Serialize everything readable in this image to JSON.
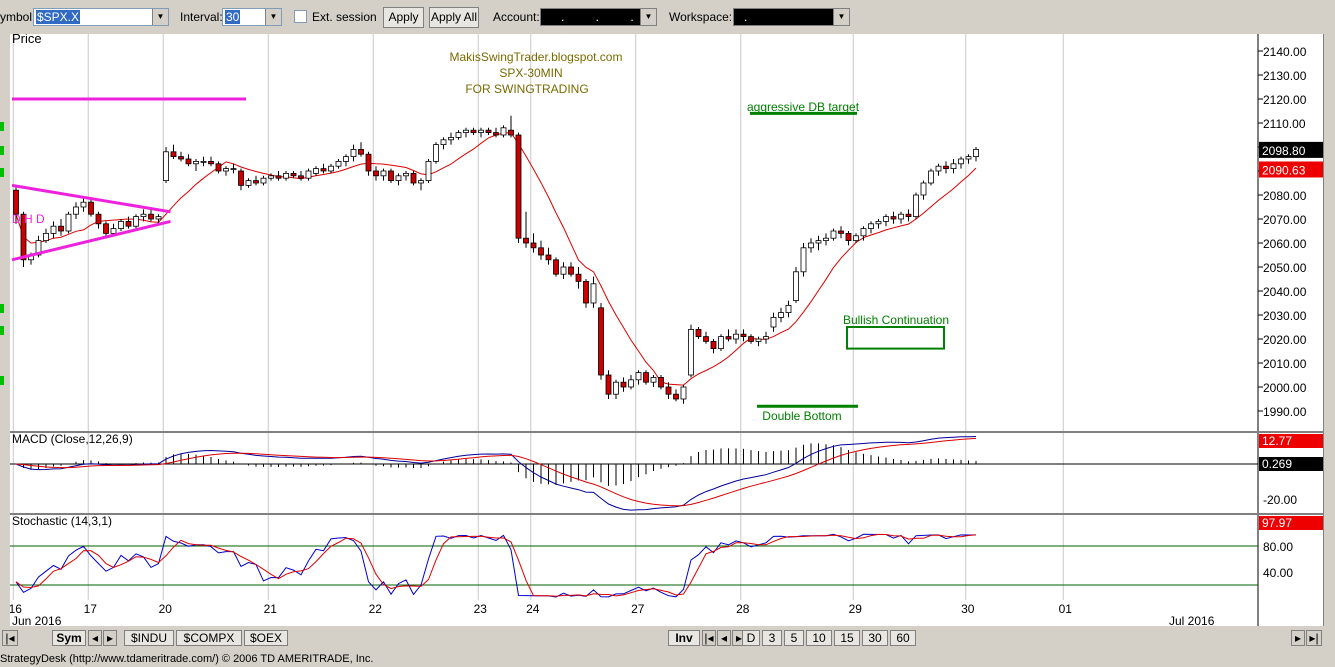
{
  "toolbar": {
    "symbol_label": "ymbol:",
    "symbol_value": "$SPX.X",
    "interval_label": "Interval:",
    "interval_value": "30",
    "ext_session_label": "Ext. session",
    "apply_label": "Apply",
    "apply_all_label": "Apply All",
    "account_label": "Account:",
    "account_value": ". . . .",
    "workspace_label": "Workspace:",
    "workspace_value": "."
  },
  "colors": {
    "candle_up": "#ffffff",
    "candle_down": "#cc0000",
    "ma_line": "#dd0000",
    "pattern_magenta": "#ee22dd",
    "pattern_green": "#008000",
    "macd_line": "#000099",
    "signal_line": "#dd0000",
    "stoch_k": "#0000cc",
    "stoch_d": "#dd0000"
  },
  "chart_data": [
    {
      "type": "candlestick",
      "panel": "Price",
      "title": "Price",
      "annotations_text": [
        "MakisSwingTrader.blogspot.com",
        "SPX-30MIN",
        "FOR SWINGTRADING",
        "aggressive DB target",
        "Bullish Continuation",
        "Double Bottom",
        "D H D"
      ],
      "x_tick_labels": [
        "16",
        "17",
        "20",
        "21",
        "22",
        "23",
        "24",
        "27",
        "28",
        "29",
        "30",
        "01"
      ],
      "x_period_labels": [
        "Jun 2016",
        "Jul 2016"
      ],
      "y_tick_labels": [
        "2140.00",
        "2130.00",
        "2120.00",
        "2110.00",
        "2100.00",
        "2090.00",
        "2080.00",
        "2070.00",
        "2060.00",
        "2050.00",
        "2040.00",
        "2030.00",
        "2020.00",
        "2010.00",
        "2000.00",
        "1990.00"
      ],
      "ylim": [
        1984,
        2145
      ],
      "last_price": "2098.80",
      "ma_last": "2090.63",
      "grid": "vertical day separators",
      "ohlc": [
        [
          2082,
          2084,
          2068,
          2072
        ],
        [
          2072,
          2073,
          2050,
          2053
        ],
        [
          2053,
          2056,
          2051,
          2055
        ],
        [
          2055,
          2063,
          2054,
          2061
        ],
        [
          2061,
          2066,
          2060,
          2064
        ],
        [
          2064,
          2069,
          2062,
          2067
        ],
        [
          2067,
          2070,
          2063,
          2065
        ],
        [
          2065,
          2073,
          2064,
          2072
        ],
        [
          2072,
          2077,
          2070,
          2075
        ],
        [
          2075,
          2079,
          2073,
          2077
        ],
        [
          2077,
          2078,
          2071,
          2072
        ],
        [
          2072,
          2073,
          2066,
          2068
        ],
        [
          2068,
          2069,
          2062,
          2064
        ],
        [
          2064,
          2068,
          2063,
          2066
        ],
        [
          2066,
          2070,
          2065,
          2069
        ],
        [
          2069,
          2071,
          2066,
          2067
        ],
        [
          2067,
          2072,
          2066,
          2071
        ],
        [
          2071,
          2074,
          2069,
          2072
        ],
        [
          2072,
          2074,
          2069,
          2070
        ],
        [
          2070,
          2072,
          2068,
          2071
        ],
        [
          2086,
          2100,
          2085,
          2098
        ],
        [
          2098,
          2101,
          2095,
          2096
        ],
        [
          2096,
          2098,
          2094,
          2095
        ],
        [
          2095,
          2097,
          2092,
          2093
        ],
        [
          2093,
          2095,
          2090,
          2094
        ],
        [
          2094,
          2096,
          2092,
          2094
        ],
        [
          2094,
          2096,
          2092,
          2093
        ],
        [
          2093,
          2094,
          2089,
          2090
        ],
        [
          2090,
          2092,
          2088,
          2091
        ],
        [
          2091,
          2093,
          2089,
          2091
        ],
        [
          2090,
          2091,
          2082,
          2084
        ],
        [
          2084,
          2087,
          2083,
          2086
        ],
        [
          2086,
          2088,
          2084,
          2085
        ],
        [
          2085,
          2088,
          2084,
          2087
        ],
        [
          2087,
          2089,
          2086,
          2088
        ],
        [
          2088,
          2090,
          2086,
          2087
        ],
        [
          2087,
          2090,
          2086,
          2089
        ],
        [
          2089,
          2090,
          2087,
          2088
        ],
        [
          2088,
          2090,
          2086,
          2087
        ],
        [
          2087,
          2091,
          2086,
          2090
        ],
        [
          2089,
          2092,
          2088,
          2091
        ],
        [
          2091,
          2093,
          2089,
          2090
        ],
        [
          2090,
          2093,
          2089,
          2092
        ],
        [
          2092,
          2095,
          2091,
          2094
        ],
        [
          2094,
          2097,
          2092,
          2096
        ],
        [
          2096,
          2101,
          2094,
          2099
        ],
        [
          2099,
          2102,
          2096,
          2097
        ],
        [
          2097,
          2098,
          2088,
          2090
        ],
        [
          2090,
          2092,
          2086,
          2088
        ],
        [
          2088,
          2091,
          2086,
          2090
        ],
        [
          2090,
          2091,
          2085,
          2086
        ],
        [
          2086,
          2089,
          2084,
          2088
        ],
        [
          2088,
          2090,
          2086,
          2089
        ],
        [
          2089,
          2090,
          2084,
          2085
        ],
        [
          2085,
          2087,
          2082,
          2086
        ],
        [
          2086,
          2095,
          2085,
          2094
        ],
        [
          2094,
          2102,
          2093,
          2101
        ],
        [
          2101,
          2104,
          2099,
          2103
        ],
        [
          2103,
          2106,
          2101,
          2104
        ],
        [
          2104,
          2107,
          2103,
          2106
        ],
        [
          2106,
          2108,
          2104,
          2107
        ],
        [
          2107,
          2108,
          2105,
          2106
        ],
        [
          2106,
          2108,
          2104,
          2107
        ],
        [
          2107,
          2108,
          2105,
          2106
        ],
        [
          2106,
          2108,
          2104,
          2105
        ],
        [
          2105,
          2109,
          2104,
          2108
        ],
        [
          2107,
          2113,
          2104,
          2105
        ],
        [
          2105,
          2106,
          2060,
          2062
        ],
        [
          2062,
          2073,
          2058,
          2060
        ],
        [
          2060,
          2064,
          2056,
          2058
        ],
        [
          2058,
          2061,
          2053,
          2055
        ],
        [
          2055,
          2058,
          2051,
          2053
        ],
        [
          2053,
          2054,
          2046,
          2047
        ],
        [
          2047,
          2052,
          2045,
          2050
        ],
        [
          2050,
          2052,
          2046,
          2047
        ],
        [
          2047,
          2050,
          2041,
          2044
        ],
        [
          2044,
          2045,
          2033,
          2035
        ],
        [
          2035,
          2046,
          2033,
          2043
        ],
        [
          2033,
          2035,
          2003,
          2005
        ],
        [
          2005,
          2007,
          1995,
          1997
        ],
        [
          1997,
          2003,
          1995,
          2002
        ],
        [
          2002,
          2004,
          1998,
          2000
        ],
        [
          2000,
          2005,
          1999,
          2003
        ],
        [
          2003,
          2007,
          2001,
          2006
        ],
        [
          2006,
          2007,
          2001,
          2002
        ],
        [
          2002,
          2005,
          2000,
          2004
        ],
        [
          2004,
          2005,
          1999,
          2000
        ],
        [
          2000,
          2002,
          1995,
          1997
        ],
        [
          1997,
          1999,
          1994,
          1995
        ],
        [
          1995,
          2001,
          1993,
          2000
        ],
        [
          2005,
          2026,
          2004,
          2024
        ],
        [
          2024,
          2025,
          2020,
          2021
        ],
        [
          2021,
          2023,
          2018,
          2019
        ],
        [
          2019,
          2020,
          2014,
          2016
        ],
        [
          2016,
          2022,
          2015,
          2021
        ],
        [
          2021,
          2024,
          2019,
          2020
        ],
        [
          2020,
          2024,
          2018,
          2022
        ],
        [
          2022,
          2024,
          2019,
          2021
        ],
        [
          2021,
          2022,
          2018,
          2019
        ],
        [
          2019,
          2021,
          2017,
          2020
        ],
        [
          2020,
          2023,
          2018,
          2021
        ],
        [
          2025,
          2031,
          2023,
          2029
        ],
        [
          2029,
          2033,
          2027,
          2031
        ],
        [
          2031,
          2036,
          2029,
          2034
        ],
        [
          2036,
          2050,
          2035,
          2048
        ],
        [
          2048,
          2060,
          2046,
          2058
        ],
        [
          2058,
          2062,
          2056,
          2060
        ],
        [
          2060,
          2063,
          2057,
          2061
        ],
        [
          2061,
          2064,
          2059,
          2062
        ],
        [
          2062,
          2066,
          2061,
          2065
        ],
        [
          2065,
          2067,
          2062,
          2064
        ],
        [
          2064,
          2065,
          2059,
          2061
        ],
        [
          2061,
          2064,
          2060,
          2063
        ],
        [
          2063,
          2067,
          2061,
          2066
        ],
        [
          2066,
          2069,
          2064,
          2068
        ],
        [
          2068,
          2070,
          2066,
          2069
        ],
        [
          2069,
          2072,
          2067,
          2071
        ],
        [
          2071,
          2073,
          2068,
          2070
        ],
        [
          2070,
          2073,
          2068,
          2072
        ],
        [
          2072,
          2074,
          2069,
          2071
        ],
        [
          2071,
          2081,
          2070,
          2080
        ],
        [
          2080,
          2086,
          2078,
          2085
        ],
        [
          2085,
          2091,
          2084,
          2090
        ],
        [
          2090,
          2093,
          2088,
          2092
        ],
        [
          2092,
          2094,
          2089,
          2091
        ],
        [
          2091,
          2095,
          2089,
          2093
        ],
        [
          2093,
          2096,
          2091,
          2095
        ],
        [
          2095,
          2097,
          2093,
          2096
        ],
        [
          2096,
          2100,
          2094,
          2099
        ]
      ],
      "lines": {
        "pattern_triangle_upper": [
          [
            2084,
            0
          ],
          [
            2073,
            19
          ]
        ],
        "pattern_triangle_lower": [
          [
            2053,
            0
          ],
          [
            2069,
            19
          ]
        ],
        "pattern_level_line": 2120,
        "aggressive_db_target": 2114,
        "double_bottom_line": 1992,
        "bullish_continuation_box": [
          2016,
          2025
        ]
      }
    },
    {
      "type": "line",
      "panel": "MACD",
      "title": "MACD (Close,12,26,9)",
      "y_tick_labels": [
        "-20.00"
      ],
      "macd_last": "12.77",
      "signal_last": "0.269",
      "ylim": [
        -26,
        18
      ],
      "series": [
        {
          "values_by_step": "macd",
          "color_key": "macd_line"
        },
        {
          "values_by_step": "signal",
          "color_key": "signal_line"
        }
      ]
    },
    {
      "type": "line",
      "panel": "Stochastic",
      "title": "Stochastic (14,3,1)",
      "y_tick_labels": [
        "80.00",
        "40.00"
      ],
      "last_value": "97.97",
      "ylim": [
        -10,
        110
      ],
      "levels": [
        80,
        20
      ]
    }
  ],
  "bottom_bar": {
    "sym_label": "Sym",
    "tabs": [
      "$INDU",
      "$COMPX",
      "$OEX"
    ],
    "inv_label": "Inv",
    "periods": [
      "D",
      "3",
      "5",
      "10",
      "15",
      "30",
      "60"
    ]
  },
  "status": {
    "text": "StrategyDesk (http://www.tdameritrade.com/) © 2006 TD AMERITRADE, Inc."
  }
}
